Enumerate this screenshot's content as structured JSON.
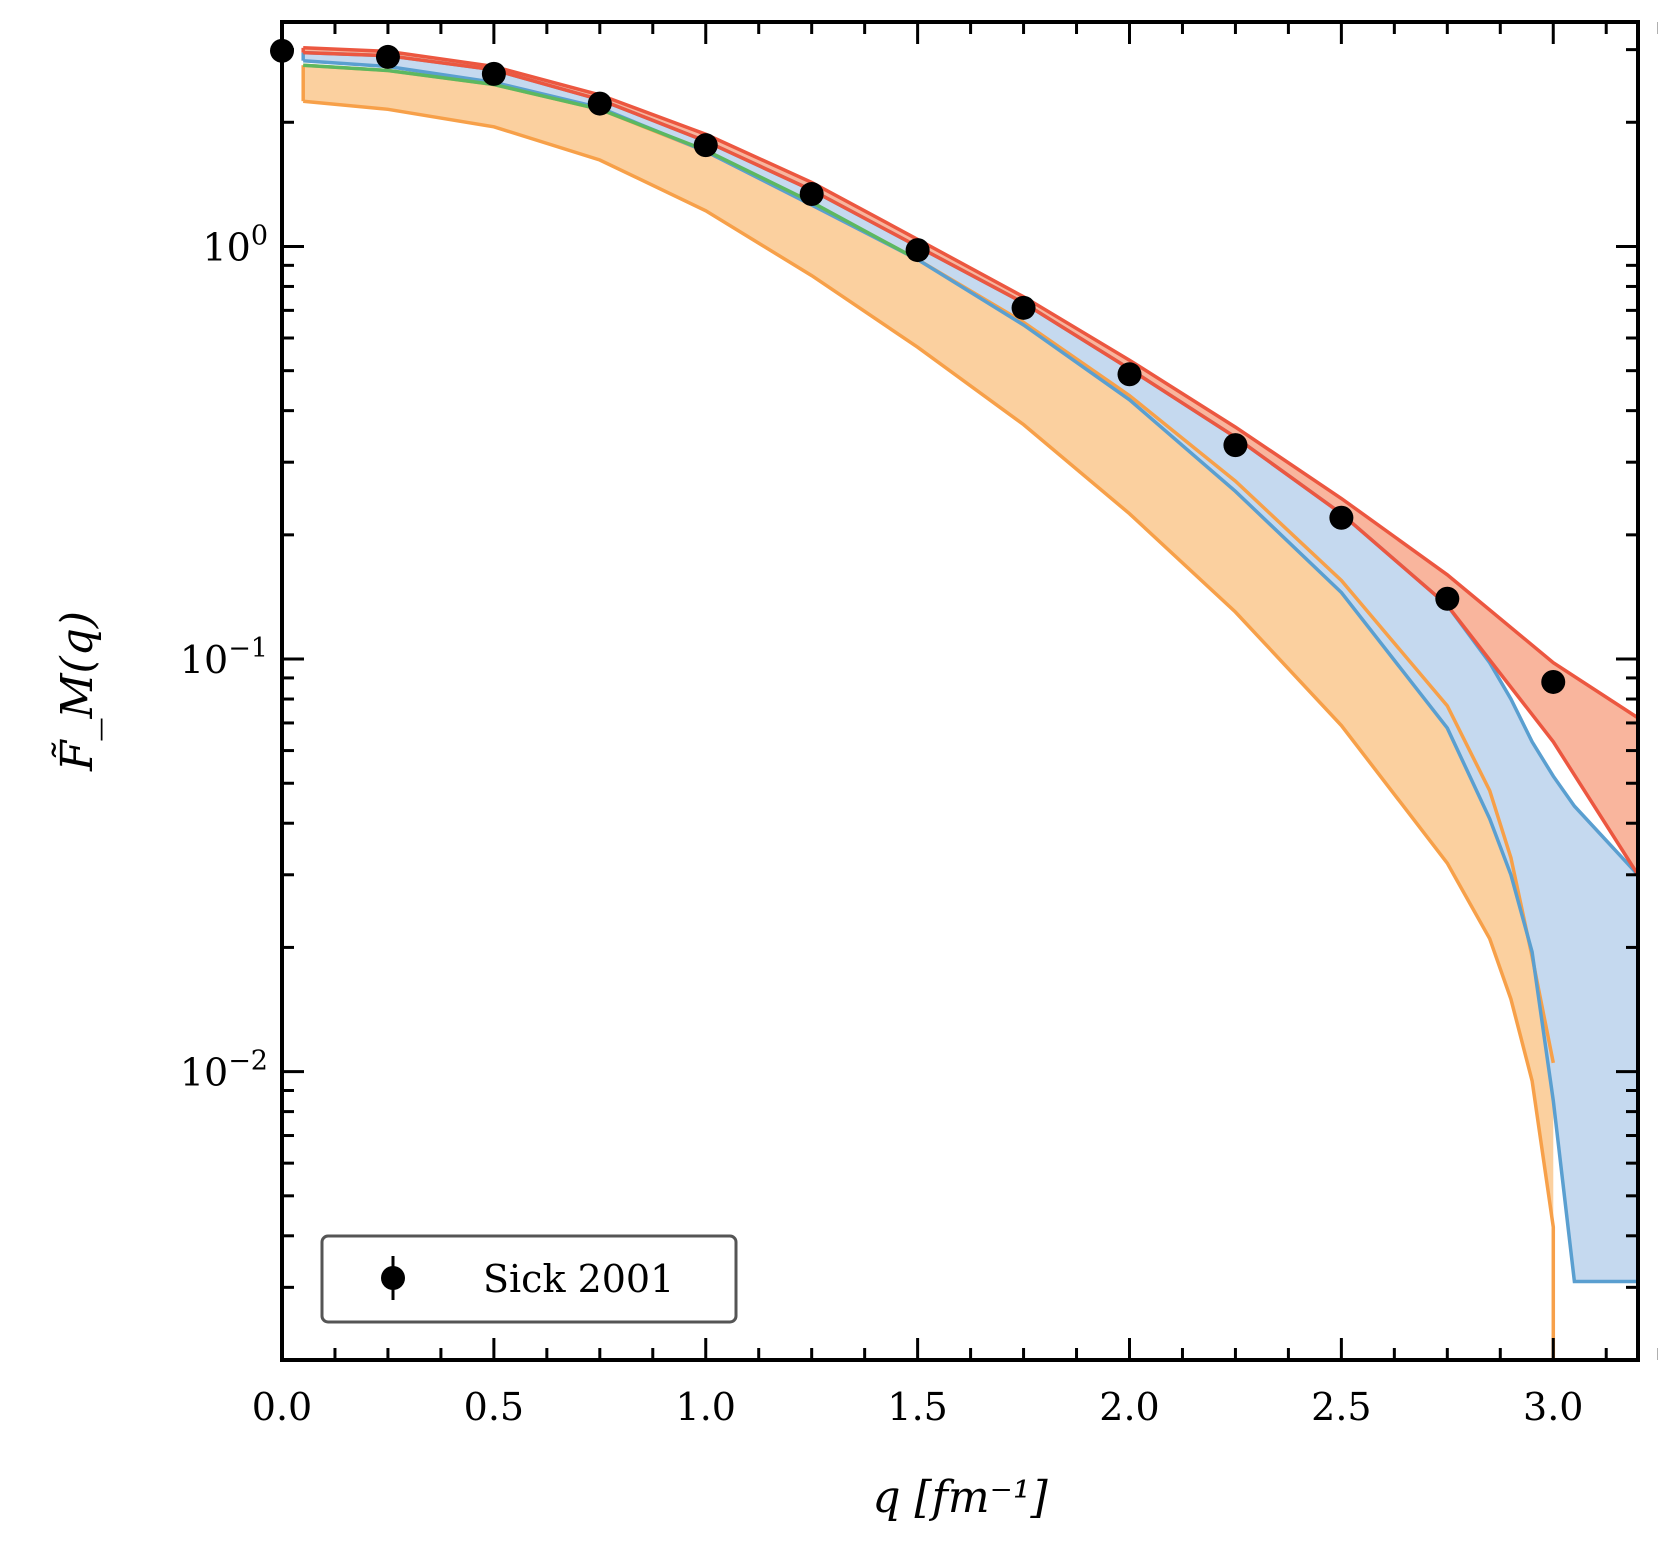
{
  "chart_data": {
    "type": "line",
    "title": "",
    "xlabel": "q [fm⁻¹]",
    "ylabel": "F̃_M(q)",
    "xlim": [
      0.0,
      3.2
    ],
    "ylim": [
      0.002,
      3.5
    ],
    "yscale": "log",
    "x_tick_labels": [
      "0.0",
      "0.5",
      "1.0",
      "1.5",
      "2.0",
      "2.5",
      "3.0"
    ],
    "y_tick_labels": [
      {
        "base": "10",
        "exp": "0"
      },
      {
        "base": "10",
        "exp": "−1"
      },
      {
        "base": "10",
        "exp": "−2"
      }
    ],
    "legend": {
      "position": "lower-left",
      "entries": [
        "Sick 2001"
      ]
    },
    "colors": {
      "orange_band": "#fbd09f",
      "orange_line": "#f7a049",
      "blue_band": "#c5d9ef",
      "blue_line": "#5a9fd0",
      "red_band": "#f9b59d",
      "red_line": "#ec5740",
      "green_line": "#5cb860",
      "points": "#000000"
    },
    "series": [
      {
        "name": "Sick 2001",
        "kind": "points",
        "x": [
          0.0,
          0.25,
          0.5,
          0.75,
          1.0,
          1.25,
          1.5,
          1.75,
          2.0,
          2.25,
          2.5,
          2.75,
          3.0
        ],
        "y": [
          2.98,
          2.88,
          2.62,
          2.22,
          1.76,
          1.34,
          0.98,
          0.71,
          0.49,
          0.33,
          0.22,
          0.14,
          0.088
        ]
      },
      {
        "name": "orange band",
        "kind": "band",
        "x": [
          0.05,
          0.25,
          0.5,
          0.75,
          1.0,
          1.25,
          1.5,
          1.75,
          2.0,
          2.25,
          2.5,
          2.75,
          2.85,
          2.9,
          2.95,
          3.0
        ],
        "lower": [
          2.25,
          2.15,
          1.95,
          1.62,
          1.22,
          0.85,
          0.57,
          0.37,
          0.225,
          0.13,
          0.069,
          0.032,
          0.021,
          0.015,
          0.0095,
          0.0042
        ],
        "upper": [
          2.75,
          2.67,
          2.47,
          2.15,
          1.7,
          1.27,
          0.93,
          0.655,
          0.435,
          0.27,
          0.155,
          0.077,
          0.048,
          0.033,
          0.019,
          0.0105
        ]
      },
      {
        "name": "blue band",
        "kind": "band",
        "x": [
          0.05,
          0.25,
          0.5,
          0.75,
          1.0,
          1.25,
          1.5,
          1.75,
          2.0,
          2.25,
          2.5,
          2.75,
          2.85,
          2.9,
          2.95,
          3.0,
          3.05,
          3.2
        ],
        "lower": [
          2.82,
          2.73,
          2.5,
          2.17,
          1.7,
          1.26,
          0.93,
          0.645,
          0.425,
          0.255,
          0.145,
          0.068,
          0.041,
          0.03,
          0.0195,
          0.0085,
          0.0031,
          0.0031
        ],
        "upper": [
          2.95,
          2.9,
          2.68,
          2.27,
          1.8,
          1.37,
          1.0,
          0.73,
          0.505,
          0.345,
          0.225,
          0.135,
          0.098,
          0.08,
          0.063,
          0.052,
          0.044,
          0.03
        ]
      },
      {
        "name": "red band",
        "kind": "band",
        "x": [
          0.05,
          0.25,
          0.5,
          0.75,
          1.0,
          1.25,
          1.5,
          1.75,
          2.0,
          2.25,
          2.5,
          2.75,
          3.0,
          3.2
        ],
        "lower": [
          2.95,
          2.9,
          2.68,
          2.27,
          1.8,
          1.37,
          1.0,
          0.73,
          0.505,
          0.345,
          0.225,
          0.135,
          0.063,
          0.03
        ],
        "upper": [
          3.03,
          2.97,
          2.73,
          2.33,
          1.87,
          1.43,
          1.04,
          0.755,
          0.53,
          0.365,
          0.245,
          0.16,
          0.098,
          0.072
        ]
      },
      {
        "name": "green line",
        "kind": "line",
        "x": [
          0.05,
          0.25,
          0.5,
          0.75,
          1.0,
          1.25,
          1.5
        ],
        "y": [
          2.75,
          2.67,
          2.47,
          2.15,
          1.71,
          1.28,
          0.93
        ]
      }
    ]
  }
}
